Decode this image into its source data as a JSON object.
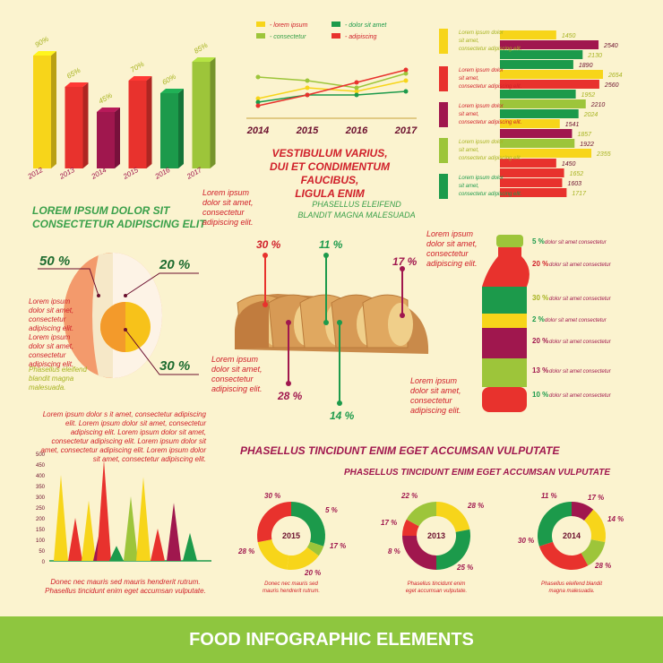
{
  "colors": {
    "red": "#e8322d",
    "yellow": "#f7d51a",
    "green": "#1c9a4b",
    "lime": "#9dc53a",
    "purple": "#a0174e",
    "orange": "#f39a2b",
    "cream": "#fbf3cf"
  },
  "bar3d": {
    "labels": [
      "2012",
      "2013",
      "2014",
      "2015",
      "2016",
      "2017"
    ],
    "pct_labels": [
      "90%",
      "65%",
      "45%",
      "70%",
      "60%",
      "85%"
    ],
    "values": [
      90,
      65,
      45,
      70,
      60,
      85
    ]
  },
  "heading1": {
    "line1": "LOREM IPSUM DOLOR SIT",
    "line2": "CONSECTETUR ADIPISCING ELIT"
  },
  "line_chart": {
    "legend": [
      "- lorem ipsum",
      "- dolor sit amet",
      "- consectetur",
      "- adipiscing"
    ],
    "years": [
      "2014",
      "2015",
      "2016",
      "2017"
    ],
    "series": [
      {
        "name": "- lorem ipsum",
        "values": [
          30,
          36,
          34,
          40
        ]
      },
      {
        "name": "- dolor sit amet",
        "values": [
          28,
          32,
          32,
          34
        ]
      },
      {
        "name": "- consectetur",
        "values": [
          42,
          40,
          36,
          44
        ]
      },
      {
        "name": "- adipiscing",
        "values": [
          26,
          32,
          39,
          46
        ]
      }
    ]
  },
  "heading2": {
    "line1": "VESTIBULUM VARIUS,",
    "line2": "DUI ET CONDIMENTUM FAUCIBUS,",
    "line3": "LIGULA ENIM"
  },
  "sub2": {
    "line1": "PHASELLUS ELEIFEND",
    "line2": "BLANDIT MAGNA MALESUADA"
  },
  "hbars": {
    "values": [
      1450,
      2540,
      2130,
      1890,
      2654,
      2560,
      1952,
      2210,
      2024,
      1541,
      1857,
      1922,
      2355,
      1450,
      1652,
      1603,
      1717
    ],
    "labels": [
      "1450",
      "2540",
      "2130",
      "1890",
      "2654",
      "2560",
      "1952",
      "2210",
      "2024",
      "1541",
      "1857",
      "1922",
      "2355",
      "1450",
      "1652",
      "1603",
      "1717"
    ],
    "text": [
      "Lorem ipsum dolor sit amet, consectetur adipiscing elit.",
      "Lorem ipsum dolor sit amet, consectetur adipiscing elit.",
      "Lorem ipsum dolor sit amet, consectetur adipiscing elit.",
      "Lorem ipsum dolor sit amet, consectetur adipiscing elit.",
      "Lorem ipsum dolor sit amet, consectetur adipiscing elit."
    ]
  },
  "egg": {
    "p50": "50 %",
    "p20": "20 %",
    "p30": "30 %",
    "text": "Lorem ipsum dolor sit amet, consectetur adipiscing elit. Lorem ipsum dolor sit amet, consectetur adipiscing elit.",
    "text2": "Phasellus eleifend blandit magna malesuada."
  },
  "bread": {
    "p30": "30 %",
    "p11": "11 %",
    "p17": "17 %",
    "p28": "28 %",
    "p14": "14 %",
    "text_a": "Lorem ipsum dolor sit amet, consectetur adipiscing elit.",
    "text_b": "Lorem ipsum dolor sit amet, consectetur adipiscing elit.",
    "text_c": "Lorem ipsum dolor sit amet, consectetur adipiscing elit.",
    "text_d": "Lorem ipsum dolor sit amet, consectetur adipiscing elit."
  },
  "bottle": {
    "items": [
      {
        "pct": "5 %",
        "txt": "dolor sit amet consectetur"
      },
      {
        "pct": "20 %",
        "txt": "dolor sit amet consectetur"
      },
      {
        "pct": "30 %",
        "txt": "dolor sit amet consectetur"
      },
      {
        "pct": "2 %",
        "txt": "dolor sit amet consectetur"
      },
      {
        "pct": "20 %",
        "txt": "dolor sit amet consectetur"
      },
      {
        "pct": "13 %",
        "txt": "dolor sit amet consectetur"
      },
      {
        "pct": "10 %",
        "txt": "dolor sit amet consectetur"
      }
    ]
  },
  "spike": {
    "text": "Lorem ipsum dolor s it amet, consectetur adipiscing elit. Lorem ipsum dolor sit amet, consectetur adipiscing elit. Lorem ipsum dolor sit amet, consectetur adipiscing elit. Lorem ipsum dolor sit amet, consectetur adipiscing elit. Lorem ipsum dolor sit amet, consectetur adipiscing elit.",
    "yticks": [
      "500",
      "450",
      "400",
      "350",
      "300",
      "250",
      "200",
      "150",
      "100",
      "50",
      "0"
    ],
    "values": [
      400,
      200,
      280,
      150,
      470,
      70,
      300,
      390,
      150,
      270,
      130
    ],
    "caption1": "Donec nec mauris sed mauris hendrerit rutrum.",
    "caption2": "Phasellus tincidunt enim eget accumsan vulputate."
  },
  "heading3": "PHASELLUS TINCIDUNT ENIM EGET ACCUMSAN VULPUTATE",
  "heading4": "PHASELLUS TINCIDUNT ENIM EGET ACCUMSAN VULPUTATE",
  "donuts": [
    {
      "year": "2015",
      "labels": [
        "30 %",
        "5 %",
        "17 %",
        "20 %",
        "28 %"
      ],
      "values": [
        30,
        5,
        17,
        20,
        28
      ],
      "caption": "Donec nec mauris sed mauris hendrerit rutrum."
    },
    {
      "year": "2013",
      "labels": [
        "22 %",
        "28 %",
        "25 %",
        "8 %",
        "17 %"
      ],
      "values": [
        22,
        28,
        25,
        8,
        17
      ],
      "caption": "Phasellus tincidunt enim eget accumsan vulputate."
    },
    {
      "year": "2014",
      "labels": [
        "11 %",
        "17 %",
        "14 %",
        "28 %",
        "30 %"
      ],
      "values": [
        11,
        17,
        14,
        28,
        30
      ],
      "caption": "Phasellus eleifend blandit magna malesuada."
    }
  ],
  "footer": "FOOD INFOGRAPHIC ELEMENTS",
  "chart_data": [
    {
      "type": "bar",
      "categories": [
        "2012",
        "2013",
        "2014",
        "2015",
        "2016",
        "2017"
      ],
      "values": [
        90,
        65,
        45,
        70,
        60,
        85
      ]
    },
    {
      "type": "line",
      "x": [
        "2014",
        "2015",
        "2016",
        "2017"
      ],
      "series": [
        {
          "name": "- lorem ipsum",
          "values": [
            30,
            36,
            34,
            40
          ]
        },
        {
          "name": "- dolor sit amet",
          "values": [
            28,
            32,
            32,
            34
          ]
        },
        {
          "name": "- consectetur",
          "values": [
            42,
            40,
            36,
            44
          ]
        },
        {
          "name": "- adipiscing",
          "values": [
            26,
            32,
            39,
            46
          ]
        }
      ]
    },
    {
      "type": "bar",
      "values": [
        1450,
        2540,
        2130,
        1890,
        2654,
        2560,
        1952,
        2210,
        2024,
        1541,
        1857,
        1922,
        2355,
        1450,
        1652,
        1603,
        1717
      ]
    },
    {
      "type": "bar",
      "yticks": [
        0,
        50,
        100,
        150,
        200,
        250,
        300,
        350,
        400,
        450,
        500
      ],
      "ylim": [
        0,
        500
      ],
      "values": [
        400,
        200,
        280,
        150,
        470,
        70,
        300,
        390,
        150,
        270,
        130
      ]
    },
    {
      "type": "pie",
      "title": "2015",
      "values": [
        30,
        5,
        17,
        20,
        28
      ]
    },
    {
      "type": "pie",
      "title": "2013",
      "values": [
        22,
        28,
        25,
        8,
        17
      ]
    },
    {
      "type": "pie",
      "title": "2014",
      "values": [
        11,
        17,
        14,
        28,
        30
      ]
    }
  ]
}
